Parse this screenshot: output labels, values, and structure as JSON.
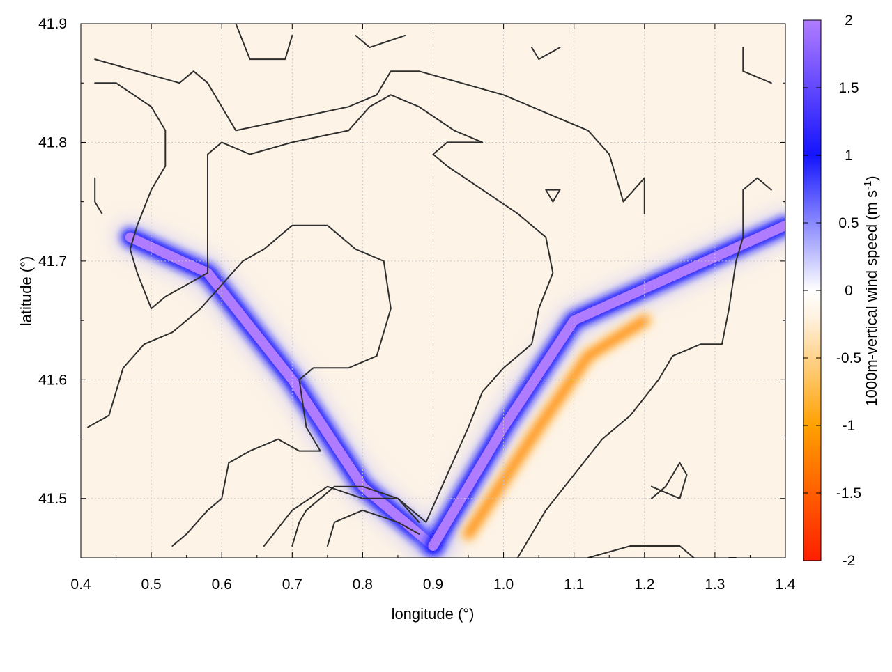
{
  "chart_data": {
    "type": "heatmap",
    "title": "",
    "xlabel": "longitude (°)",
    "ylabel": "latitude (°)",
    "xlim": [
      0.4,
      1.4
    ],
    "ylim": [
      41.45,
      41.9
    ],
    "x_ticks": [
      "0.4",
      "0.5",
      "0.6",
      "0.7",
      "0.8",
      "0.9",
      "1.0",
      "1.1",
      "1.2",
      "1.3",
      "1.4"
    ],
    "y_ticks": [
      "41.5",
      "41.6",
      "41.7",
      "41.8",
      "41.9"
    ],
    "grid": true,
    "colorbar": {
      "label_main": "1000m-vertical wind speed (m s",
      "label_sup": "-1",
      "label_end": ")",
      "range": [
        -2,
        2
      ],
      "ticks": [
        "2",
        "1.5",
        "1",
        "0.5",
        "0",
        "-0.5",
        "-1",
        "-1.5",
        "-2"
      ],
      "colors": [
        "#ff1e00",
        "#ffa000",
        "#fff2e0",
        "#ffffff",
        "#1414ff",
        "#b07cff"
      ]
    },
    "features": [
      {
        "name": "updraft band (NW arm)",
        "value": 2,
        "points": [
          [
            0.47,
            41.72
          ],
          [
            0.58,
            41.69
          ],
          [
            0.7,
            41.6
          ],
          [
            0.8,
            41.51
          ],
          [
            0.9,
            41.46
          ]
        ]
      },
      {
        "name": "updraft band (NE arm)",
        "value": 2,
        "points": [
          [
            0.9,
            41.46
          ],
          [
            1.0,
            41.56
          ],
          [
            1.1,
            41.65
          ],
          [
            1.25,
            41.69
          ],
          [
            1.4,
            41.73
          ]
        ]
      },
      {
        "name": "downdraft band (SE)",
        "value": -1.2,
        "points": [
          [
            0.95,
            41.47
          ],
          [
            1.05,
            41.56
          ],
          [
            1.12,
            41.62
          ],
          [
            1.2,
            41.65
          ]
        ]
      }
    ],
    "contours": [
      [
        [
          0.42,
          41.87
        ],
        [
          0.48,
          41.86
        ],
        [
          0.54,
          41.85
        ],
        [
          0.56,
          41.86
        ],
        [
          0.58,
          41.85
        ],
        [
          0.62,
          41.81
        ],
        [
          0.7,
          41.82
        ],
        [
          0.78,
          41.83
        ],
        [
          0.82,
          41.84
        ],
        [
          0.84,
          41.86
        ],
        [
          0.88,
          41.86
        ],
        [
          0.94,
          41.85
        ],
        [
          1.0,
          41.84
        ],
        [
          1.04,
          41.83
        ],
        [
          1.08,
          41.82
        ],
        [
          1.12,
          41.81
        ],
        [
          1.15,
          41.79
        ],
        [
          1.17,
          41.75
        ],
        [
          1.2,
          41.77
        ],
        [
          1.2,
          41.74
        ]
      ],
      [
        [
          0.42,
          41.85
        ],
        [
          0.45,
          41.85
        ],
        [
          0.5,
          41.83
        ],
        [
          0.52,
          41.81
        ],
        [
          0.52,
          41.78
        ],
        [
          0.5,
          41.76
        ],
        [
          0.48,
          41.73
        ],
        [
          0.47,
          41.71
        ],
        [
          0.48,
          41.69
        ],
        [
          0.5,
          41.66
        ],
        [
          0.52,
          41.67
        ],
        [
          0.55,
          41.68
        ],
        [
          0.58,
          41.69
        ],
        [
          0.58,
          41.73
        ],
        [
          0.58,
          41.79
        ],
        [
          0.6,
          41.8
        ],
        [
          0.64,
          41.79
        ],
        [
          0.7,
          41.8
        ],
        [
          0.78,
          41.81
        ],
        [
          0.81,
          41.83
        ],
        [
          0.84,
          41.84
        ],
        [
          0.88,
          41.83
        ],
        [
          0.93,
          41.81
        ],
        [
          0.97,
          41.8
        ],
        [
          0.92,
          41.8
        ],
        [
          0.9,
          41.79
        ],
        [
          0.92,
          41.78
        ],
        [
          0.97,
          41.76
        ],
        [
          1.02,
          41.74
        ],
        [
          1.06,
          41.72
        ],
        [
          1.07,
          41.69
        ],
        [
          1.05,
          41.66
        ],
        [
          1.04,
          41.63
        ],
        [
          1.0,
          41.61
        ],
        [
          0.97,
          41.59
        ],
        [
          0.95,
          41.56
        ],
        [
          0.92,
          41.52
        ],
        [
          0.89,
          41.48
        ],
        [
          0.85,
          41.5
        ],
        [
          0.8,
          41.51
        ],
        [
          0.76,
          41.51
        ],
        [
          0.74,
          41.5
        ],
        [
          0.72,
          41.49
        ],
        [
          0.71,
          41.48
        ],
        [
          0.7,
          41.46
        ]
      ],
      [
        [
          0.41,
          41.56
        ],
        [
          0.44,
          41.57
        ],
        [
          0.46,
          41.61
        ],
        [
          0.49,
          41.63
        ],
        [
          0.53,
          41.64
        ],
        [
          0.57,
          41.66
        ],
        [
          0.6,
          41.68
        ],
        [
          0.63,
          41.7
        ],
        [
          0.66,
          41.71
        ],
        [
          0.7,
          41.73
        ],
        [
          0.75,
          41.73
        ],
        [
          0.79,
          41.71
        ],
        [
          0.83,
          41.7
        ],
        [
          0.84,
          41.66
        ],
        [
          0.82,
          41.62
        ],
        [
          0.78,
          41.61
        ],
        [
          0.73,
          41.61
        ],
        [
          0.71,
          41.6
        ],
        [
          0.72,
          41.56
        ],
        [
          0.74,
          41.54
        ],
        [
          0.71,
          41.54
        ],
        [
          0.68,
          41.55
        ],
        [
          0.64,
          41.54
        ],
        [
          0.61,
          41.53
        ],
        [
          0.6,
          41.5
        ],
        [
          0.58,
          41.49
        ],
        [
          0.55,
          41.47
        ],
        [
          0.53,
          41.46
        ]
      ],
      [
        [
          0.66,
          41.46
        ],
        [
          0.7,
          41.49
        ],
        [
          0.75,
          41.51
        ],
        [
          0.8,
          41.5
        ],
        [
          0.85,
          41.5
        ],
        [
          0.88,
          41.48
        ]
      ],
      [
        [
          0.75,
          41.46
        ],
        [
          0.76,
          41.48
        ],
        [
          0.8,
          41.49
        ],
        [
          0.85,
          41.48
        ],
        [
          0.88,
          41.47
        ]
      ],
      [
        [
          1.02,
          41.45
        ],
        [
          1.06,
          41.49
        ],
        [
          1.1,
          41.52
        ],
        [
          1.14,
          41.55
        ],
        [
          1.18,
          41.57
        ],
        [
          1.22,
          41.6
        ],
        [
          1.24,
          41.62
        ],
        [
          1.28,
          41.63
        ],
        [
          1.31,
          41.63
        ],
        [
          1.32,
          41.66
        ],
        [
          1.33,
          41.7
        ],
        [
          1.34,
          41.72
        ],
        [
          1.34,
          41.76
        ],
        [
          1.36,
          41.77
        ],
        [
          1.38,
          41.76
        ]
      ],
      [
        [
          1.12,
          41.45
        ],
        [
          1.18,
          41.46
        ],
        [
          1.25,
          41.46
        ],
        [
          1.27,
          41.45
        ]
      ],
      [
        [
          1.21,
          41.51
        ],
        [
          1.25,
          41.5
        ],
        [
          1.26,
          41.52
        ],
        [
          1.25,
          41.53
        ],
        [
          1.23,
          41.51
        ],
        [
          1.21,
          41.5
        ]
      ],
      [
        [
          0.62,
          41.9
        ],
        [
          0.64,
          41.87
        ],
        [
          0.69,
          41.87
        ],
        [
          0.7,
          41.89
        ]
      ],
      [
        [
          0.79,
          41.89
        ],
        [
          0.81,
          41.88
        ],
        [
          0.86,
          41.89
        ]
      ],
      [
        [
          1.04,
          41.88
        ],
        [
          1.05,
          41.87
        ],
        [
          1.08,
          41.88
        ]
      ],
      [
        [
          1.34,
          41.88
        ],
        [
          1.34,
          41.86
        ],
        [
          1.38,
          41.85
        ]
      ],
      [
        [
          0.42,
          41.77
        ],
        [
          0.42,
          41.75
        ],
        [
          0.43,
          41.74
        ]
      ],
      [
        [
          1.06,
          41.76
        ],
        [
          1.08,
          41.76
        ],
        [
          1.07,
          41.75
        ],
        [
          1.06,
          41.76
        ]
      ],
      [
        [
          1.32,
          41.45
        ],
        [
          1.33,
          41.45
        ]
      ]
    ]
  }
}
